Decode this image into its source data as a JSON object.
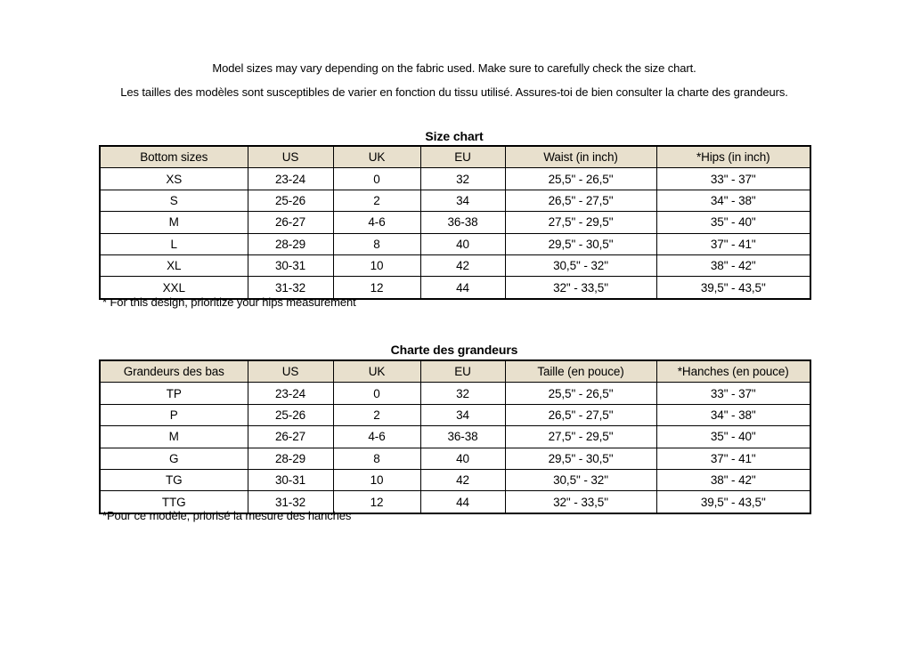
{
  "intro": {
    "en": "Model sizes may vary depending on the fabric used. Make sure to carefully check the size chart.",
    "fr": "Les tailles des modèles sont susceptibles de varier en fonction du tissu utilisé. Assures-toi de bien consulter la charte des grandeurs."
  },
  "colors": {
    "header_background": "#e8e0cd",
    "table_border": "#000000",
    "text": "#000000",
    "page_background": "#ffffff"
  },
  "tables": {
    "en": {
      "title": "Size chart",
      "headers": [
        "Bottom sizes",
        "US",
        "UK",
        "EU",
        "Waist (in inch)",
        "*Hips (in inch)"
      ],
      "rows": [
        [
          "XS",
          "23-24",
          "0",
          "32",
          "25,5\" - 26,5\"",
          "33\" - 37\""
        ],
        [
          "S",
          "25-26",
          "2",
          "34",
          "26,5\" - 27,5\"",
          "34\" - 38\""
        ],
        [
          "M",
          "26-27",
          "4-6",
          "36-38",
          "27,5\" - 29,5\"",
          "35\" - 40\""
        ],
        [
          "L",
          "28-29",
          "8",
          "40",
          "29,5\" - 30,5\"",
          "37\" - 41\""
        ],
        [
          "XL",
          "30-31",
          "10",
          "42",
          "30,5\" - 32\"",
          "38\" - 42\""
        ],
        [
          "XXL",
          "31-32",
          "12",
          "44",
          "32\" - 33,5\"",
          "39,5\" - 43,5\""
        ]
      ],
      "footnote": "* For this design, prioritize your hips measurement"
    },
    "fr": {
      "title": "Charte des grandeurs",
      "headers": [
        "Grandeurs des bas",
        "US",
        "UK",
        "EU",
        "Taille (en pouce)",
        "*Hanches (en pouce)"
      ],
      "rows": [
        [
          "TP",
          "23-24",
          "0",
          "32",
          "25,5\" - 26,5\"",
          "33\" - 37\""
        ],
        [
          "P",
          "25-26",
          "2",
          "34",
          "26,5\" - 27,5\"",
          "34\" - 38\""
        ],
        [
          "M",
          "26-27",
          "4-6",
          "36-38",
          "27,5\" - 29,5\"",
          "35\" - 40\""
        ],
        [
          "G",
          "28-29",
          "8",
          "40",
          "29,5\" - 30,5\"",
          "37\" - 41\""
        ],
        [
          "TG",
          "30-31",
          "10",
          "42",
          "30,5\" - 32\"",
          "38\" - 42\""
        ],
        [
          "TTG",
          "31-32",
          "12",
          "44",
          "32\" - 33,5\"",
          "39,5\" - 43,5\""
        ]
      ],
      "footnote": "*Pour ce modèle, priorisé la mesure des hanches"
    }
  }
}
